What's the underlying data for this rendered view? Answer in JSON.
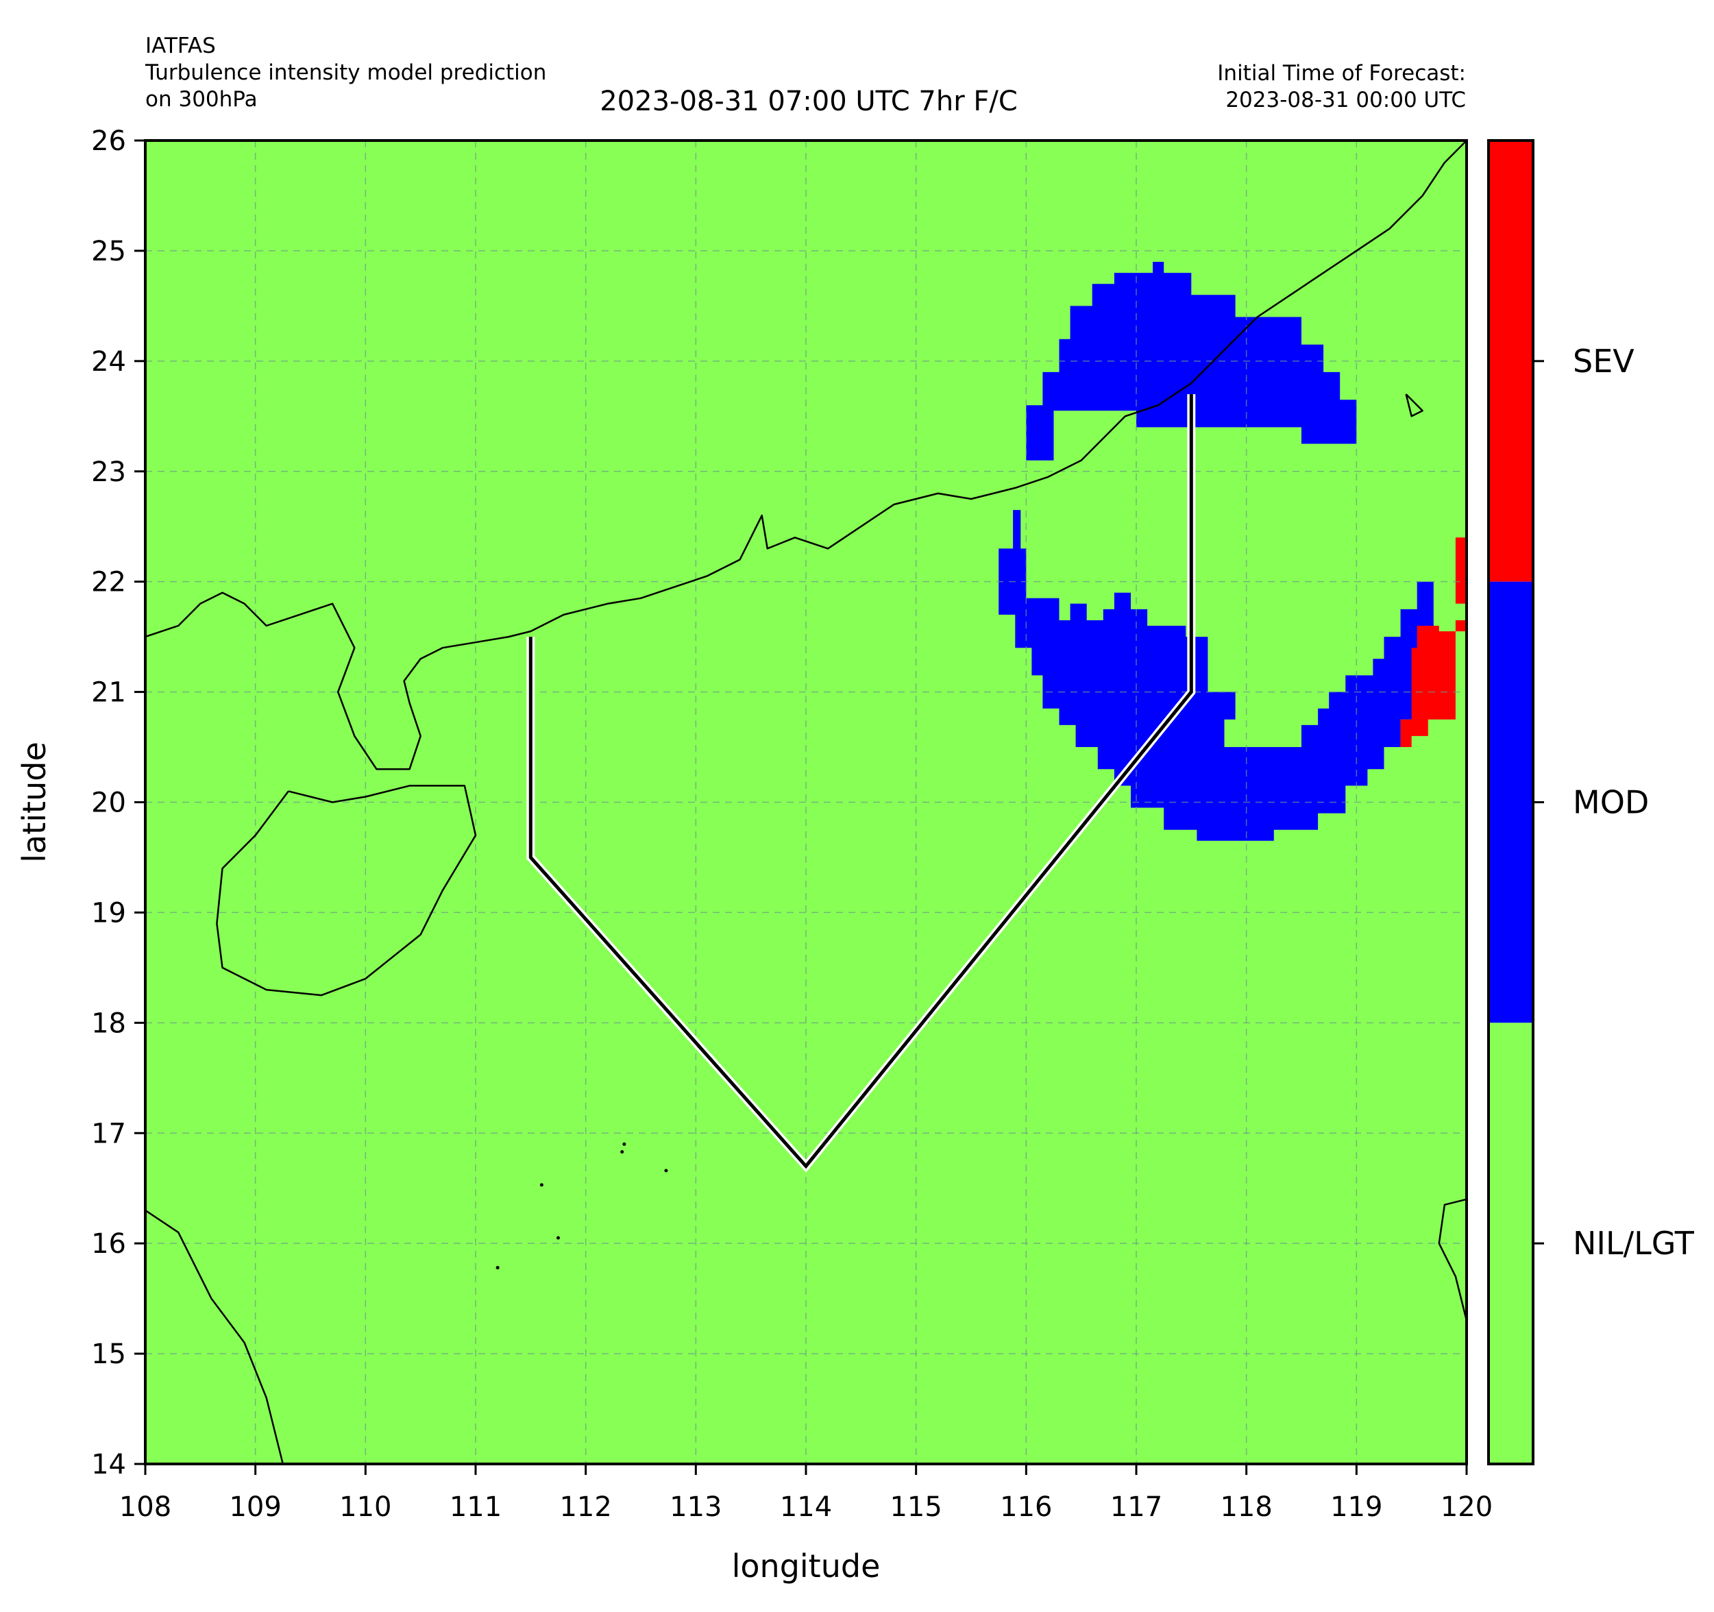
{
  "header": {
    "left_line1": "IATFAS",
    "left_line2": "Turbulence intensity model prediction",
    "left_line3": "on 300hPa",
    "center_title": "2023-08-31 07:00 UTC 7hr F/C",
    "right_line1": "Initial Time of Forecast:",
    "right_line2": "2023-08-31 00:00 UTC"
  },
  "map": {
    "xlabel": "longitude",
    "ylabel": "latitude",
    "lon_range": [
      108,
      120
    ],
    "lat_range": [
      14,
      26
    ],
    "x_ticks": [
      "108",
      "109",
      "110",
      "111",
      "112",
      "113",
      "114",
      "115",
      "116",
      "117",
      "118",
      "119",
      "120"
    ],
    "y_ticks": [
      "14",
      "15",
      "16",
      "17",
      "18",
      "19",
      "20",
      "21",
      "22",
      "23",
      "24",
      "25",
      "26"
    ],
    "grid": "dashed",
    "background_category": "NIL/LGT",
    "colors": {
      "NIL/LGT": "#88ff55",
      "MOD": "#0000ff",
      "SEV": "#ff0000",
      "coast": "#000000",
      "route": "#000000",
      "route_halo": "#ffffff"
    },
    "route": [
      {
        "lon": 111.5,
        "lat": 21.5
      },
      {
        "lon": 111.5,
        "lat": 19.5
      },
      {
        "lon": 114.0,
        "lat": 16.7
      },
      {
        "lon": 117.5,
        "lat": 21.0
      },
      {
        "lon": 117.5,
        "lat": 23.7
      }
    ],
    "regions": [
      {
        "category": "MOD",
        "points": [
          [
            116.0,
            23.1
          ],
          [
            116.0,
            23.6
          ],
          [
            116.15,
            23.6
          ],
          [
            116.15,
            23.9
          ],
          [
            116.3,
            23.9
          ],
          [
            116.3,
            24.2
          ],
          [
            116.4,
            24.2
          ],
          [
            116.4,
            24.5
          ],
          [
            116.6,
            24.5
          ],
          [
            116.6,
            24.7
          ],
          [
            116.8,
            24.7
          ],
          [
            116.8,
            24.8
          ],
          [
            117.15,
            24.8
          ],
          [
            117.15,
            24.9
          ],
          [
            117.25,
            24.9
          ],
          [
            117.25,
            24.8
          ],
          [
            117.5,
            24.8
          ],
          [
            117.5,
            24.6
          ],
          [
            117.9,
            24.6
          ],
          [
            117.9,
            24.4
          ],
          [
            118.5,
            24.4
          ],
          [
            118.5,
            24.15
          ],
          [
            118.7,
            24.15
          ],
          [
            118.7,
            23.9
          ],
          [
            118.85,
            23.9
          ],
          [
            118.85,
            23.65
          ],
          [
            119.0,
            23.65
          ],
          [
            119.0,
            23.25
          ],
          [
            118.5,
            23.25
          ],
          [
            118.5,
            23.4
          ],
          [
            117.0,
            23.4
          ],
          [
            117.0,
            23.55
          ],
          [
            116.25,
            23.55
          ],
          [
            116.25,
            23.1
          ]
        ]
      },
      {
        "category": "MOD",
        "points": [
          [
            115.75,
            22.3
          ],
          [
            115.75,
            21.7
          ],
          [
            115.9,
            21.7
          ],
          [
            115.9,
            21.4
          ],
          [
            116.05,
            21.4
          ],
          [
            116.05,
            21.15
          ],
          [
            116.15,
            21.15
          ],
          [
            116.15,
            20.85
          ],
          [
            116.3,
            20.85
          ],
          [
            116.3,
            20.7
          ],
          [
            116.45,
            20.7
          ],
          [
            116.45,
            20.5
          ],
          [
            116.65,
            20.5
          ],
          [
            116.65,
            20.3
          ],
          [
            116.8,
            20.3
          ],
          [
            116.8,
            20.15
          ],
          [
            116.95,
            20.15
          ],
          [
            116.95,
            19.95
          ],
          [
            117.25,
            19.95
          ],
          [
            117.25,
            19.75
          ],
          [
            117.55,
            19.75
          ],
          [
            117.55,
            19.65
          ],
          [
            118.25,
            19.65
          ],
          [
            118.25,
            19.75
          ],
          [
            118.65,
            19.75
          ],
          [
            118.65,
            19.9
          ],
          [
            118.9,
            19.9
          ],
          [
            118.9,
            20.15
          ],
          [
            119.1,
            20.15
          ],
          [
            119.1,
            20.3
          ],
          [
            119.25,
            20.3
          ],
          [
            119.25,
            20.5
          ],
          [
            119.4,
            20.5
          ],
          [
            119.4,
            20.75
          ],
          [
            119.55,
            20.75
          ],
          [
            119.55,
            21.0
          ],
          [
            119.65,
            21.0
          ],
          [
            119.65,
            21.4
          ],
          [
            119.7,
            21.4
          ],
          [
            119.7,
            22.0
          ],
          [
            119.55,
            22.0
          ],
          [
            119.55,
            21.75
          ],
          [
            119.4,
            21.75
          ],
          [
            119.4,
            21.5
          ],
          [
            119.25,
            21.5
          ],
          [
            119.25,
            21.3
          ],
          [
            119.15,
            21.3
          ],
          [
            119.15,
            21.15
          ],
          [
            118.9,
            21.15
          ],
          [
            118.9,
            21.0
          ],
          [
            118.75,
            21.0
          ],
          [
            118.75,
            20.85
          ],
          [
            118.65,
            20.85
          ],
          [
            118.65,
            20.7
          ],
          [
            118.5,
            20.7
          ],
          [
            118.5,
            20.5
          ],
          [
            117.8,
            20.5
          ],
          [
            117.8,
            20.75
          ],
          [
            117.9,
            20.75
          ],
          [
            117.9,
            21.0
          ],
          [
            117.65,
            21.0
          ],
          [
            117.65,
            21.5
          ],
          [
            117.45,
            21.5
          ],
          [
            117.45,
            21.6
          ],
          [
            117.1,
            21.6
          ],
          [
            117.1,
            21.75
          ],
          [
            116.95,
            21.75
          ],
          [
            116.95,
            21.9
          ],
          [
            116.8,
            21.9
          ],
          [
            116.8,
            21.75
          ],
          [
            116.7,
            21.75
          ],
          [
            116.7,
            21.65
          ],
          [
            116.55,
            21.65
          ],
          [
            116.55,
            21.8
          ],
          [
            116.4,
            21.8
          ],
          [
            116.4,
            21.65
          ],
          [
            116.3,
            21.65
          ],
          [
            116.3,
            21.85
          ],
          [
            116.0,
            21.85
          ],
          [
            116.0,
            22.3
          ],
          [
            115.95,
            22.3
          ],
          [
            115.95,
            22.65
          ],
          [
            115.88,
            22.65
          ],
          [
            115.88,
            22.3
          ]
        ]
      },
      {
        "category": "SEV",
        "points": [
          [
            119.4,
            20.5
          ],
          [
            119.5,
            20.5
          ],
          [
            119.5,
            20.6
          ],
          [
            119.65,
            20.6
          ],
          [
            119.65,
            20.75
          ],
          [
            119.9,
            20.75
          ],
          [
            119.9,
            21.55
          ],
          [
            119.75,
            21.55
          ],
          [
            119.75,
            21.6
          ],
          [
            119.55,
            21.6
          ],
          [
            119.55,
            21.4
          ],
          [
            119.5,
            21.4
          ],
          [
            119.5,
            20.75
          ],
          [
            119.4,
            20.75
          ]
        ]
      },
      {
        "category": "SEV",
        "points": [
          [
            119.9,
            21.8
          ],
          [
            120.0,
            21.8
          ],
          [
            120.0,
            22.4
          ],
          [
            119.9,
            22.4
          ]
        ]
      },
      {
        "category": "SEV",
        "points": [
          [
            119.9,
            21.55
          ],
          [
            120.0,
            21.55
          ],
          [
            120.0,
            21.65
          ],
          [
            119.9,
            21.65
          ]
        ]
      }
    ],
    "coastlines": [
      [
        [
          108.0,
          21.5
        ],
        [
          108.3,
          21.6
        ],
        [
          108.5,
          21.8
        ],
        [
          108.7,
          21.9
        ],
        [
          108.9,
          21.8
        ],
        [
          109.1,
          21.6
        ],
        [
          109.4,
          21.7
        ],
        [
          109.7,
          21.8
        ],
        [
          109.9,
          21.4
        ],
        [
          109.75,
          21.0
        ],
        [
          109.9,
          20.6
        ],
        [
          110.1,
          20.3
        ],
        [
          110.4,
          20.3
        ],
        [
          110.5,
          20.6
        ],
        [
          110.4,
          20.9
        ],
        [
          110.35,
          21.1
        ],
        [
          110.5,
          21.3
        ],
        [
          110.7,
          21.4
        ],
        [
          111.0,
          21.45
        ],
        [
          111.3,
          21.5
        ],
        [
          111.5,
          21.55
        ],
        [
          111.8,
          21.7
        ],
        [
          112.2,
          21.8
        ],
        [
          112.5,
          21.85
        ],
        [
          112.8,
          21.95
        ],
        [
          113.1,
          22.05
        ],
        [
          113.4,
          22.2
        ],
        [
          113.6,
          22.6
        ],
        [
          113.65,
          22.3
        ],
        [
          113.9,
          22.4
        ],
        [
          114.2,
          22.3
        ],
        [
          114.5,
          22.5
        ],
        [
          114.8,
          22.7
        ],
        [
          115.2,
          22.8
        ],
        [
          115.5,
          22.75
        ],
        [
          115.9,
          22.85
        ],
        [
          116.2,
          22.95
        ],
        [
          116.5,
          23.1
        ],
        [
          116.7,
          23.3
        ],
        [
          116.9,
          23.5
        ],
        [
          117.2,
          23.6
        ],
        [
          117.5,
          23.8
        ],
        [
          117.8,
          24.1
        ],
        [
          118.1,
          24.4
        ],
        [
          118.4,
          24.6
        ],
        [
          118.7,
          24.8
        ],
        [
          119.0,
          25.0
        ],
        [
          119.3,
          25.2
        ],
        [
          119.6,
          25.5
        ],
        [
          119.8,
          25.8
        ],
        [
          120.0,
          26.0
        ]
      ],
      [
        [
          109.3,
          20.1
        ],
        [
          109.7,
          20.0
        ],
        [
          110.0,
          20.05
        ],
        [
          110.4,
          20.15
        ],
        [
          110.9,
          20.15
        ],
        [
          111.0,
          19.7
        ],
        [
          110.7,
          19.2
        ],
        [
          110.5,
          18.8
        ],
        [
          110.0,
          18.4
        ],
        [
          109.6,
          18.25
        ],
        [
          109.1,
          18.3
        ],
        [
          108.7,
          18.5
        ],
        [
          108.65,
          18.9
        ],
        [
          108.7,
          19.4
        ],
        [
          109.0,
          19.7
        ],
        [
          109.3,
          20.1
        ]
      ],
      [
        [
          108.0,
          16.3
        ],
        [
          108.3,
          16.1
        ],
        [
          108.6,
          15.5
        ],
        [
          108.9,
          15.1
        ],
        [
          109.1,
          14.6
        ],
        [
          109.25,
          14.0
        ]
      ],
      [
        [
          120.0,
          16.4
        ],
        [
          119.8,
          16.35
        ],
        [
          119.75,
          16.0
        ],
        [
          119.9,
          15.7
        ],
        [
          120.0,
          15.3
        ]
      ],
      [
        [
          119.45,
          23.7
        ],
        [
          119.6,
          23.55
        ],
        [
          119.5,
          23.5
        ],
        [
          119.45,
          23.7
        ]
      ]
    ],
    "islets": [
      [
        112.35,
        16.9
      ],
      [
        112.33,
        16.83
      ],
      [
        112.73,
        16.66
      ],
      [
        111.6,
        16.53
      ],
      [
        111.75,
        16.05
      ],
      [
        111.2,
        15.78
      ]
    ]
  },
  "colorbar": {
    "labels": [
      {
        "text": "SEV",
        "color": "#ff0000"
      },
      {
        "text": "MOD",
        "color": "#0000ff"
      },
      {
        "text": "NIL/LGT",
        "color": "#88ff55"
      }
    ]
  }
}
